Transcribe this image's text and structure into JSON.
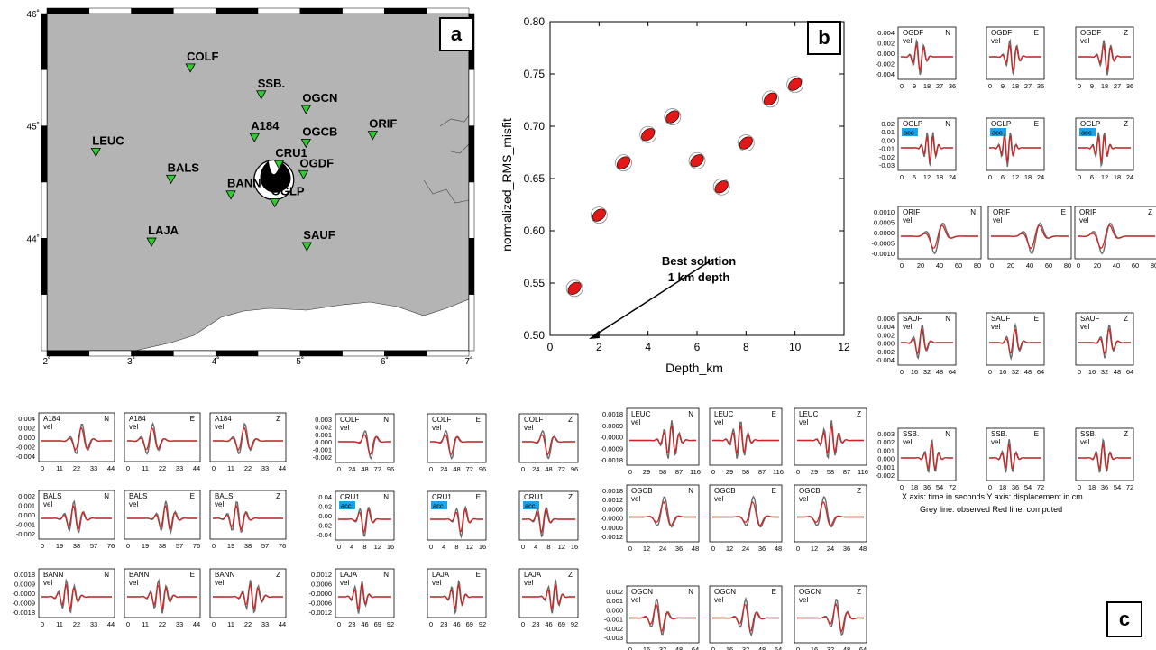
{
  "map": {
    "panel_label": "a",
    "lat_ticks": [
      "46˚",
      "45˚",
      "44˚"
    ],
    "lon_ticks": [
      "2˚",
      "3˚",
      "4˚",
      "5˚",
      "6˚",
      "7˚"
    ],
    "stations": [
      {
        "code": "COLF",
        "lon": 3.7,
        "lat": 45.52
      },
      {
        "code": "SSB.",
        "lon": 4.54,
        "lat": 45.28
      },
      {
        "code": "OGCN",
        "lon": 5.07,
        "lat": 45.15
      },
      {
        "code": "A184",
        "lon": 4.46,
        "lat": 44.9
      },
      {
        "code": "OGCB",
        "lon": 5.07,
        "lat": 44.85
      },
      {
        "code": "ORIF",
        "lon": 5.86,
        "lat": 44.92
      },
      {
        "code": "LEUC",
        "lon": 2.58,
        "lat": 44.77
      },
      {
        "code": "CRU1",
        "lon": 4.75,
        "lat": 44.66
      },
      {
        "code": "OGDF",
        "lon": 5.04,
        "lat": 44.57
      },
      {
        "code": "BALS",
        "lon": 3.47,
        "lat": 44.53
      },
      {
        "code": "BANN",
        "lon": 4.18,
        "lat": 44.39
      },
      {
        "code": "OGLP",
        "lon": 4.7,
        "lat": 44.32
      },
      {
        "code": "LAJA",
        "lon": 3.24,
        "lat": 43.97
      },
      {
        "code": "SAUF",
        "lon": 5.08,
        "lat": 43.93
      }
    ],
    "epicenter": {
      "lon": 4.69,
      "lat": 44.52
    }
  },
  "chart_data": {
    "type": "scatter",
    "panel_label": "b",
    "xlabel": "Depth_km",
    "ylabel": "normalized_RMS_misfit",
    "xlim": [
      0,
      12
    ],
    "ylim": [
      0.5,
      0.8
    ],
    "xticks": [
      "0",
      "2",
      "4",
      "6",
      "8",
      "10",
      "12"
    ],
    "yticks": [
      "0.50",
      "0.55",
      "0.60",
      "0.65",
      "0.70",
      "0.75",
      "0.80"
    ],
    "x": [
      1,
      2,
      3,
      4,
      5,
      6,
      7,
      8,
      9,
      10
    ],
    "y": [
      0.545,
      0.615,
      0.665,
      0.692,
      0.709,
      0.667,
      0.642,
      0.684,
      0.726,
      0.74
    ],
    "annotation": "Best solution\n1 km depth",
    "grid": false,
    "marker": "focal-mechanism beachball (red)"
  },
  "waveforms": {
    "panel_label": "c",
    "observed_color": "#6a6a6a",
    "computed_color": "#d42020",
    "acc_badge_color": "#1aa3e8",
    "caption_line1": "X axis: time in seconds    Y axis: displacement in cm",
    "caption_line2": "Grey line: observed    Red line: computed",
    "components": [
      "N",
      "E",
      "Z"
    ],
    "stations": [
      {
        "code": "A184",
        "type": "vel",
        "yticks": [
          "0.004",
          "0.002",
          "0.000",
          "-0.002",
          "-0.004"
        ],
        "xticks": [
          "0",
          "11",
          "22",
          "33",
          "44"
        ]
      },
      {
        "code": "BALS",
        "type": "vel",
        "yticks": [
          "0.002",
          "0.001",
          "0.000",
          "-0.001",
          "-0.002"
        ],
        "xticks": [
          "0",
          "19",
          "38",
          "57",
          "76"
        ]
      },
      {
        "code": "BANN",
        "type": "vel",
        "yticks": [
          "0.0018",
          "0.0009",
          "-0.0000",
          "-0.0009",
          "-0.0018"
        ],
        "xticks": [
          "0",
          "11",
          "22",
          "33",
          "44"
        ]
      },
      {
        "code": "COLF",
        "type": "vel",
        "yticks": [
          "0.003",
          "0.002",
          "0.001",
          "0.000",
          "-0.001",
          "-0.002"
        ],
        "xticks": [
          "0",
          "24",
          "48",
          "72",
          "96"
        ]
      },
      {
        "code": "CRU1",
        "type": "acc",
        "yticks": [
          "0.04",
          "0.02",
          "0.00",
          "-0.02",
          "-0.04"
        ],
        "xticks": [
          "0",
          "4",
          "8",
          "12",
          "16"
        ]
      },
      {
        "code": "LAJA",
        "type": "vel",
        "yticks": [
          "0.0012",
          "0.0006",
          "-0.0000",
          "-0.0006",
          "-0.0012"
        ],
        "xticks": [
          "0",
          "23",
          "46",
          "69",
          "92"
        ]
      },
      {
        "code": "LEUC",
        "type": "vel",
        "yticks": [
          "0.0018",
          "0.0009",
          "-0.0000",
          "-0.0009",
          "-0.0018"
        ],
        "xticks": [
          "0",
          "29",
          "58",
          "87",
          "116"
        ]
      },
      {
        "code": "OGCB",
        "type": "vel",
        "yticks": [
          "0.0018",
          "0.0012",
          "0.0006",
          "-0.0000",
          "-0.0006",
          "-0.0012"
        ],
        "xticks": [
          "0",
          "12",
          "24",
          "36",
          "48"
        ]
      },
      {
        "code": "OGCN",
        "type": "vel",
        "yticks": [
          "0.002",
          "0.001",
          "0.000",
          "-0.001",
          "-0.002",
          "-0.003"
        ],
        "xticks": [
          "0",
          "16",
          "32",
          "48",
          "64"
        ]
      },
      {
        "code": "OGDF",
        "type": "vel",
        "yticks": [
          "0.004",
          "0.002",
          "0.000",
          "-0.002",
          "-0.004"
        ],
        "xticks": [
          "0",
          "9",
          "18",
          "27",
          "36"
        ]
      },
      {
        "code": "OGLP",
        "type": "acc",
        "yticks": [
          "0.02",
          "0.01",
          "0.00",
          "-0.01",
          "-0.02",
          "-0.03"
        ],
        "xticks": [
          "0",
          "6",
          "12",
          "18",
          "24"
        ]
      },
      {
        "code": "ORIF",
        "type": "vel",
        "yticks": [
          "0.0010",
          "0.0005",
          "0.0000",
          "-0.0005",
          "-0.0010"
        ],
        "xticks": [
          "0",
          "20",
          "40",
          "60",
          "80"
        ]
      },
      {
        "code": "SAUF",
        "type": "vel",
        "yticks": [
          "0.006",
          "0.004",
          "0.002",
          "0.000",
          "-0.002",
          "-0.004"
        ],
        "xticks": [
          "0",
          "16",
          "32",
          "48",
          "64"
        ]
      },
      {
        "code": "SSB.",
        "type": "vel",
        "yticks": [
          "0.003",
          "0.002",
          "0.001",
          "0.000",
          "-0.001",
          "-0.002"
        ],
        "xticks": [
          "0",
          "18",
          "36",
          "54",
          "72"
        ]
      }
    ]
  }
}
